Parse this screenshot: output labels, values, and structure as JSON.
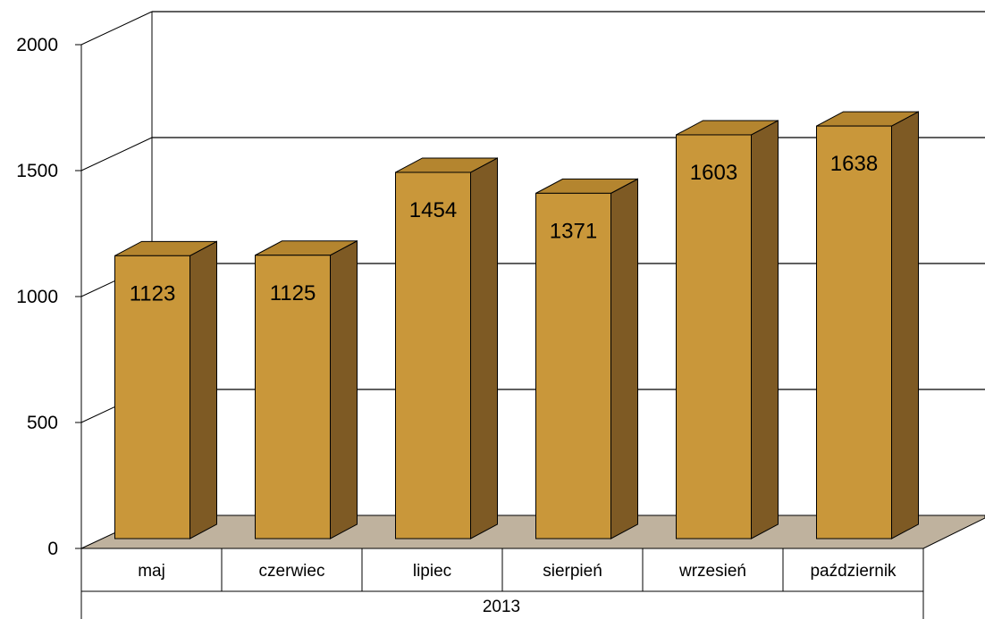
{
  "chart_data": {
    "type": "bar",
    "categories": [
      "maj",
      "czerwiec",
      "lipiec",
      "sierpień",
      "wrzesień",
      "październik"
    ],
    "values": [
      1123,
      1125,
      1454,
      1371,
      1603,
      1638
    ],
    "group_label": "2013",
    "yticks": [
      0,
      500,
      1000,
      1500,
      2000
    ],
    "ylim": [
      0,
      2000
    ],
    "grid": true,
    "legend": "none",
    "colors": {
      "bar_front": "#C9973A",
      "bar_side": "#7E5A24",
      "bar_top": "#B4852F",
      "floor": "#BFB29E",
      "grid": "#000000"
    }
  }
}
